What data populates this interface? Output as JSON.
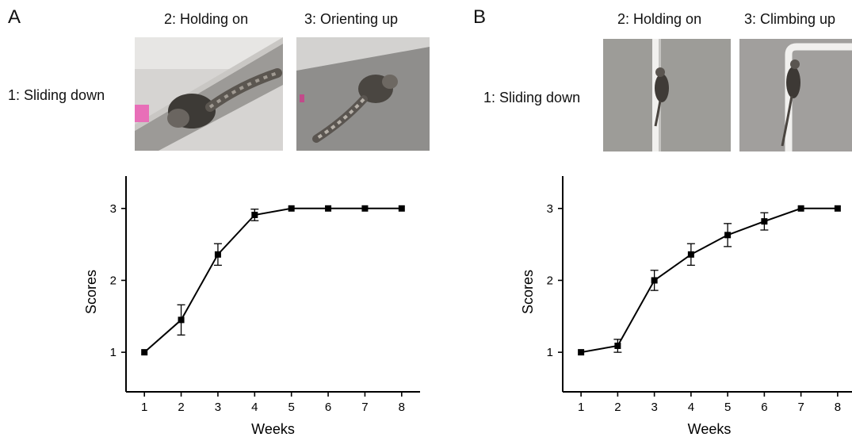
{
  "panels": [
    {
      "letter": "A",
      "stages": [
        {
          "label": "1: Sliding down"
        },
        {
          "label": "2: Holding on"
        },
        {
          "label": "3: Orienting up"
        }
      ]
    },
    {
      "letter": "B",
      "stages": [
        {
          "label": "1: Sliding down"
        },
        {
          "label": "2: Holding on"
        },
        {
          "label": "3: Climbing up"
        }
      ]
    }
  ],
  "chart_data": [
    {
      "type": "line",
      "title": "",
      "xlabel": "Weeks",
      "ylabel": "Scores",
      "x": [
        1,
        2,
        3,
        4,
        5,
        6,
        7,
        8
      ],
      "xlim": [
        0.5,
        8.5
      ],
      "ylim": [
        0.45,
        3.45
      ],
      "yticks": [
        1,
        2,
        3
      ],
      "grid": false,
      "legend": "none",
      "series": [
        {
          "values": [
            1.0,
            1.45,
            2.36,
            2.91,
            3.0,
            3.0,
            3.0,
            3.0
          ],
          "error": [
            0,
            0.21,
            0.15,
            0.08,
            0,
            0,
            0,
            0
          ],
          "marker": "square",
          "color": "#000000"
        }
      ]
    },
    {
      "type": "line",
      "title": "",
      "xlabel": "Weeks",
      "ylabel": "Scores",
      "x": [
        1,
        2,
        3,
        4,
        5,
        6,
        7,
        8
      ],
      "xlim": [
        0.5,
        8.5
      ],
      "ylim": [
        0.45,
        3.45
      ],
      "yticks": [
        1,
        2,
        3
      ],
      "grid": false,
      "legend": "none",
      "series": [
        {
          "values": [
            1.0,
            1.09,
            2.0,
            2.36,
            2.63,
            2.82,
            3.0,
            3.0
          ],
          "error": [
            0,
            0.09,
            0.14,
            0.15,
            0.16,
            0.12,
            0,
            0
          ],
          "marker": "square",
          "color": "#000000"
        }
      ]
    }
  ]
}
